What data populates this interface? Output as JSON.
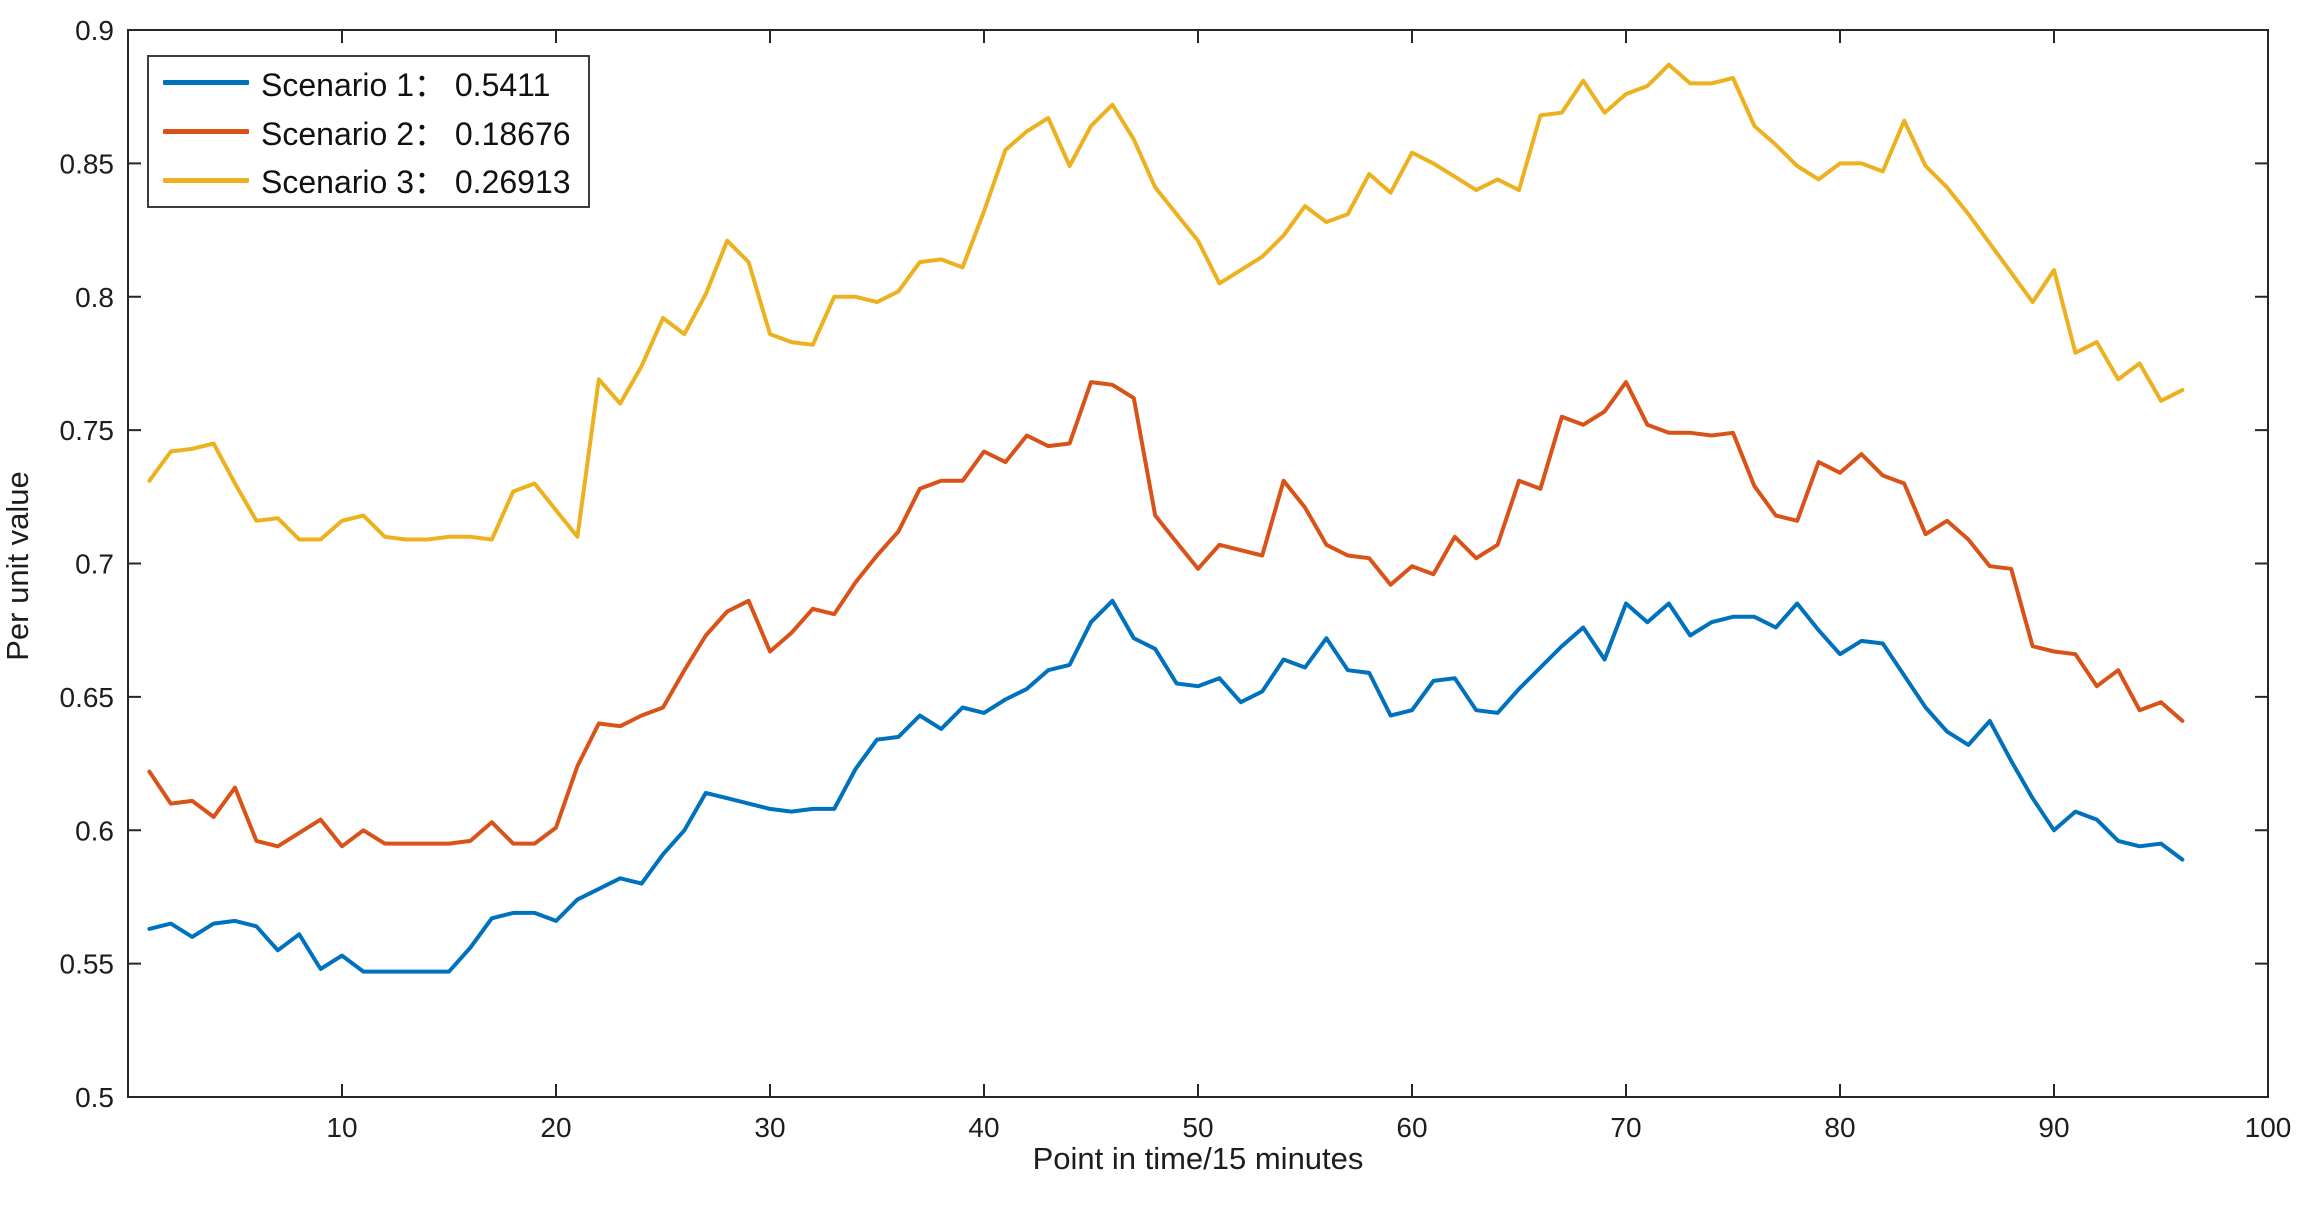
{
  "chart_data": {
    "type": "line",
    "title": "",
    "xlabel": "Point in time/15 minutes",
    "ylabel": "Per unit value",
    "xlim": [
      0,
      100
    ],
    "ylim": [
      0.5,
      0.9
    ],
    "grid": false,
    "box": true,
    "tick_direction": "in",
    "legend_position": "top-left",
    "xticks": [
      10,
      20,
      30,
      40,
      50,
      60,
      70,
      80,
      90,
      100
    ],
    "ytick_labels": [
      "0.5",
      "0.55",
      "0.6",
      "0.65",
      "0.7",
      "0.75",
      "0.8",
      "0.85",
      "0.9"
    ],
    "x_start": 1,
    "series": [
      {
        "name": "Scenario 1： 0.5411",
        "color": "#0072BD",
        "values": [
          0.563,
          0.565,
          0.56,
          0.565,
          0.566,
          0.564,
          0.555,
          0.561,
          0.548,
          0.553,
          0.547,
          0.547,
          0.547,
          0.547,
          0.547,
          0.556,
          0.567,
          0.569,
          0.569,
          0.566,
          0.574,
          0.578,
          0.582,
          0.58,
          0.591,
          0.6,
          0.614,
          0.612,
          0.61,
          0.608,
          0.607,
          0.608,
          0.608,
          0.623,
          0.634,
          0.635,
          0.643,
          0.638,
          0.646,
          0.644,
          0.649,
          0.653,
          0.66,
          0.662,
          0.678,
          0.686,
          0.672,
          0.668,
          0.655,
          0.654,
          0.657,
          0.648,
          0.652,
          0.664,
          0.661,
          0.672,
          0.66,
          0.659,
          0.643,
          0.645,
          0.656,
          0.657,
          0.645,
          0.644,
          0.653,
          0.661,
          0.669,
          0.676,
          0.664,
          0.685,
          0.678,
          0.685,
          0.673,
          0.678,
          0.68,
          0.68,
          0.676,
          0.685,
          0.675,
          0.666,
          0.671,
          0.67,
          0.658,
          0.646,
          0.637,
          0.632,
          0.641,
          0.626,
          0.612,
          0.6,
          0.607,
          0.604,
          0.596,
          0.594,
          0.595,
          0.589
        ]
      },
      {
        "name": "Scenario 2： 0.18676",
        "color": "#D95319",
        "values": [
          0.622,
          0.61,
          0.611,
          0.605,
          0.616,
          0.596,
          0.594,
          0.599,
          0.604,
          0.594,
          0.6,
          0.595,
          0.595,
          0.595,
          0.595,
          0.596,
          0.603,
          0.595,
          0.595,
          0.601,
          0.624,
          0.64,
          0.639,
          0.643,
          0.646,
          0.66,
          0.673,
          0.682,
          0.686,
          0.667,
          0.674,
          0.683,
          0.681,
          0.693,
          0.703,
          0.712,
          0.728,
          0.731,
          0.731,
          0.742,
          0.738,
          0.748,
          0.744,
          0.745,
          0.768,
          0.767,
          0.762,
          0.718,
          0.708,
          0.698,
          0.707,
          0.705,
          0.703,
          0.731,
          0.721,
          0.707,
          0.703,
          0.702,
          0.692,
          0.699,
          0.696,
          0.71,
          0.702,
          0.707,
          0.731,
          0.728,
          0.755,
          0.752,
          0.757,
          0.768,
          0.752,
          0.749,
          0.749,
          0.748,
          0.749,
          0.729,
          0.718,
          0.716,
          0.738,
          0.734,
          0.741,
          0.733,
          0.73,
          0.711,
          0.716,
          0.709,
          0.699,
          0.698,
          0.669,
          0.667,
          0.666,
          0.654,
          0.66,
          0.645,
          0.648,
          0.641
        ]
      },
      {
        "name": "Scenario 3： 0.26913",
        "color": "#EDB120",
        "values": [
          0.731,
          0.742,
          0.743,
          0.745,
          0.73,
          0.716,
          0.717,
          0.709,
          0.709,
          0.716,
          0.718,
          0.71,
          0.709,
          0.709,
          0.71,
          0.71,
          0.709,
          0.727,
          0.73,
          0.72,
          0.71,
          0.769,
          0.76,
          0.774,
          0.792,
          0.786,
          0.801,
          0.821,
          0.813,
          0.786,
          0.783,
          0.782,
          0.8,
          0.8,
          0.798,
          0.802,
          0.813,
          0.814,
          0.811,
          0.832,
          0.855,
          0.862,
          0.867,
          0.849,
          0.864,
          0.872,
          0.859,
          0.841,
          0.831,
          0.821,
          0.805,
          0.81,
          0.815,
          0.823,
          0.834,
          0.828,
          0.831,
          0.846,
          0.839,
          0.854,
          0.85,
          0.845,
          0.84,
          0.844,
          0.84,
          0.868,
          0.869,
          0.881,
          0.869,
          0.876,
          0.879,
          0.887,
          0.88,
          0.88,
          0.882,
          0.864,
          0.857,
          0.849,
          0.844,
          0.85,
          0.85,
          0.847,
          0.866,
          0.849,
          0.841,
          0.831,
          0.82,
          0.809,
          0.798,
          0.81,
          0.779,
          0.783,
          0.769,
          0.775,
          0.761,
          0.765
        ]
      }
    ]
  },
  "legend": {
    "items": [
      {
        "label": "Scenario 1： 0.5411",
        "color": "#0072BD"
      },
      {
        "label": "Scenario 2： 0.18676",
        "color": "#D95319"
      },
      {
        "label": "Scenario 3： 0.26913",
        "color": "#EDB120"
      }
    ]
  },
  "axes": {
    "xlabel": "Point in time/15 minutes",
    "ylabel": "Per unit value",
    "color": "#262626"
  }
}
